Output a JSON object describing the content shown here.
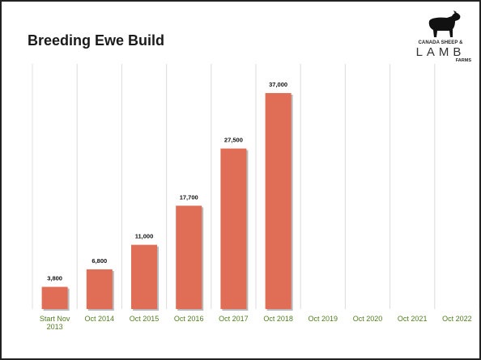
{
  "slide": {
    "title": "Breeding Ewe Build"
  },
  "logo": {
    "line1": "CANADA SHEEP &",
    "line2": "LAMB",
    "line3": "FARMS",
    "icon": "sheep-icon"
  },
  "chart_data": {
    "type": "bar",
    "title": "Breeding Ewe Build",
    "categories": [
      [
        "Start Nov",
        "2013"
      ],
      [
        "Oct 2014"
      ],
      [
        "Oct 2015"
      ],
      [
        "Oct 2016"
      ],
      [
        "Oct 2017"
      ],
      [
        "Oct 2018"
      ],
      [
        "Oct 2019"
      ],
      [
        "Oct 2020"
      ],
      [
        "Oct 2021"
      ],
      [
        "Oct 2022"
      ]
    ],
    "values": [
      3800,
      6800,
      11000,
      17700,
      27500,
      37000,
      null,
      null,
      null,
      null
    ],
    "data_labels": [
      "3,800",
      "6,800",
      "11,000",
      "17,700",
      "27,500",
      "37,000",
      "",
      "",
      "",
      ""
    ],
    "xlabel": "",
    "ylabel": "",
    "ylim": [
      0,
      40000
    ],
    "grid": "vertical",
    "colors": {
      "bar": "#e06d55",
      "bar_shadow": "#b9b9b9",
      "tick_label": "#4e7d1e",
      "gridline": "#dcdcdc"
    }
  }
}
